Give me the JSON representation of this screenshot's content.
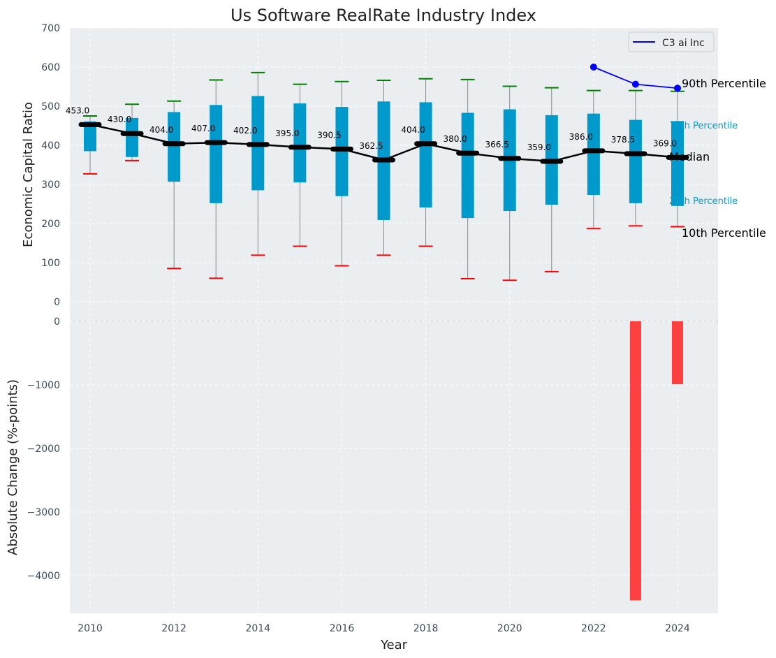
{
  "chart_data": [
    {
      "type": "box",
      "title": "Us Software RealRate Industry Index",
      "ylabel": "Economic Capital Ratio",
      "ylim": [
        0,
        700
      ],
      "yticks": [
        "0",
        "100",
        "200",
        "300",
        "400",
        "500",
        "600",
        "700"
      ],
      "grid": true,
      "legend_position": "top-right",
      "x": [
        2010,
        2011,
        2012,
        2013,
        2014,
        2015,
        2016,
        2017,
        2018,
        2019,
        2020,
        2021,
        2022,
        2023,
        2024
      ],
      "p10": [
        327,
        361,
        85,
        60,
        119,
        142,
        92,
        119,
        142,
        59,
        55,
        77,
        187,
        194,
        192
      ],
      "p25": [
        385,
        370,
        307,
        252,
        285,
        305,
        270,
        209,
        241,
        214,
        232,
        248,
        273,
        252,
        245
      ],
      "median": [
        453,
        430,
        404,
        407,
        402,
        395,
        390.5,
        362.5,
        404,
        380,
        366.5,
        359,
        386,
        378.5,
        369
      ],
      "median_labels": [
        "453.0",
        "430.0",
        "404.0",
        "407.0",
        "402.0",
        "395.0",
        "390.5",
        "362.5",
        "404.0",
        "380.0",
        "366.5",
        "359.0",
        "386.0",
        "378.5",
        "369.0"
      ],
      "p75": [
        461,
        470,
        485,
        503,
        526,
        507,
        498,
        512,
        510,
        483,
        492,
        477,
        481,
        465,
        462
      ],
      "p90": [
        475,
        505,
        513,
        567,
        586,
        556,
        563,
        566,
        570,
        568,
        551,
        547,
        540,
        540,
        538
      ],
      "series": [
        {
          "name": "C3 ai Inc",
          "x": [
            2022,
            2023,
            2024
          ],
          "values": [
            600,
            556,
            546
          ],
          "color": "#0000ff"
        }
      ],
      "band_labels": {
        "p90": "90th Percentile",
        "p75": "75th Percentile",
        "median": "Median",
        "p25": "25th Percentile",
        "p10": "10th Percentile"
      },
      "colors": {
        "box": "#0099cc",
        "median_line": "#000000",
        "p90_cap": "#008000",
        "p10_cap": "#ff0000",
        "whisker": "#888888"
      }
    },
    {
      "type": "bar",
      "xlabel": "Year",
      "ylabel": "Absolute Change (%-points)",
      "ylim": [
        -4600,
        0
      ],
      "yticks": [
        "0",
        "−1000",
        "−2000",
        "−3000",
        "−4000"
      ],
      "xticks": [
        "2010",
        "2012",
        "2014",
        "2016",
        "2018",
        "2020",
        "2022",
        "2024"
      ],
      "grid": true,
      "categories": [
        2023,
        2024
      ],
      "values": [
        -4390,
        -990
      ],
      "color": "#ff4040"
    }
  ]
}
